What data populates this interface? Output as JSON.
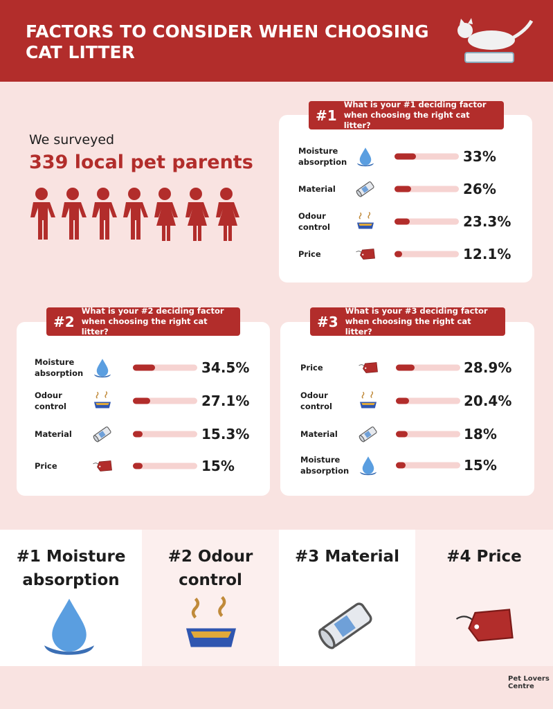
{
  "header": {
    "title": "FACTORS TO CONSIDER WHEN CHOOSING CAT LITTER"
  },
  "survey": {
    "intro": "We surveyed",
    "count": "339 local pet parents"
  },
  "panels": [
    {
      "badge": "#1",
      "question": "What is your #1 deciding factor when choosing the right cat litter?",
      "xlim": [
        0,
        100
      ],
      "items": [
        {
          "label": "Moisture absorption",
          "value": 33,
          "value_label": "33%"
        },
        {
          "label": "Material",
          "value": 26,
          "value_label": "26%"
        },
        {
          "label": "Odour control",
          "value": 23.3,
          "value_label": "23.3%"
        },
        {
          "label": "Price",
          "value": 12.1,
          "value_label": "12.1%"
        }
      ]
    },
    {
      "badge": "#2",
      "question": "What is your #2 deciding factor when choosing the right cat litter?",
      "xlim": [
        0,
        100
      ],
      "items": [
        {
          "label": "Moisture absorption",
          "value": 34.5,
          "value_label": "34.5%"
        },
        {
          "label": "Odour control",
          "value": 27.1,
          "value_label": "27.1%"
        },
        {
          "label": "Material",
          "value": 15.3,
          "value_label": "15.3%"
        },
        {
          "label": "Price",
          "value": 15,
          "value_label": "15%"
        }
      ]
    },
    {
      "badge": "#3",
      "question": "What is your #3 deciding factor when choosing the right cat litter?",
      "xlim": [
        0,
        100
      ],
      "items": [
        {
          "label": "Price",
          "value": 28.9,
          "value_label": "28.9%"
        },
        {
          "label": "Odour control",
          "value": 20.4,
          "value_label": "20.4%"
        },
        {
          "label": "Material",
          "value": 18,
          "value_label": "18%"
        },
        {
          "label": "Moisture absorption",
          "value": 15,
          "value_label": "15%"
        }
      ]
    }
  ],
  "ranking": [
    "#1 Moisture absorption",
    "#2 Odour control",
    "#3 Material",
    "#4 Price"
  ],
  "footer": {
    "brand": "Pet Lovers Centre"
  }
}
